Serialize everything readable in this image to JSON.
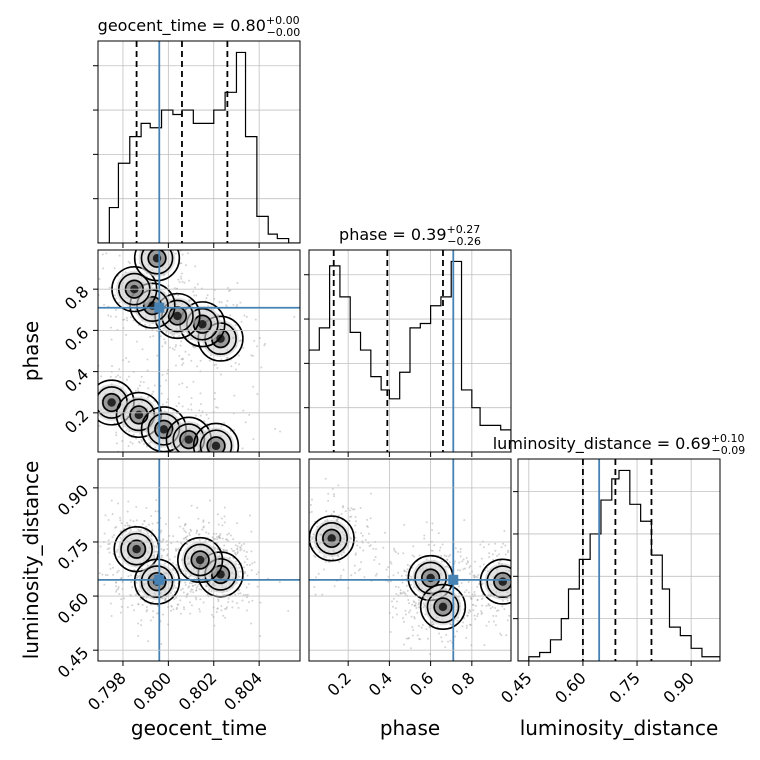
{
  "chart_data": {
    "type": "corner",
    "parameters": [
      "geocent_time",
      "phase",
      "luminosity_distance"
    ],
    "truth": {
      "geocent_time": 0.7996,
      "phase": 0.71,
      "luminosity_distance": 0.645
    },
    "colors": {
      "truth": "#4682b4",
      "hist": "#000000",
      "grid": "#c0c0c0",
      "points": "#9e9e9e",
      "contour": "#000000"
    },
    "grid": true,
    "titles": {
      "geocent_time": {
        "name": "geocent_time",
        "value": "0.80",
        "plus": "+0.00",
        "minus": "−0.00"
      },
      "phase": {
        "name": "phase",
        "value": "0.39",
        "plus": "+0.27",
        "minus": "−0.26"
      },
      "luminosity_distance": {
        "name": "luminosity_distance",
        "value": "0.69",
        "plus": "+0.10",
        "minus": "−0.09"
      }
    },
    "axes": {
      "geocent_time": {
        "range": [
          0.7969,
          0.8058
        ],
        "ticks": [
          0.798,
          0.8,
          0.802,
          0.804
        ],
        "tick_labels": [
          "0.798",
          "0.800",
          "0.802",
          "0.804"
        ]
      },
      "phase": {
        "range": [
          0.01,
          0.99
        ],
        "ticks": [
          0.2,
          0.4,
          0.6,
          0.8
        ],
        "tick_labels": [
          "0.2",
          "0.4",
          "0.6",
          "0.8"
        ]
      },
      "luminosity_distance": {
        "range": [
          0.42,
          0.98
        ],
        "ticks": [
          0.45,
          0.6,
          0.75,
          0.9
        ],
        "tick_labels": [
          "0.45",
          "0.60",
          "0.75",
          "0.90"
        ]
      }
    },
    "histograms": {
      "geocent_time": {
        "bins": [
          0.7969,
          0.7974,
          0.7978,
          0.7983,
          0.7988,
          0.7992,
          0.7997,
          0.8002,
          0.8006,
          0.8011,
          0.8016,
          0.802,
          0.8025,
          0.803,
          0.8034,
          0.8039,
          0.8044,
          0.8048,
          0.8053,
          0.8058
        ],
        "counts": [
          0,
          8,
          18,
          24,
          27,
          26,
          30,
          29,
          30,
          27,
          27,
          30,
          34,
          43,
          24,
          6,
          2,
          1,
          0
        ],
        "quantiles": [
          0.7986,
          0.8006,
          0.8026
        ]
      },
      "phase": {
        "bins": [
          0.01,
          0.06,
          0.11,
          0.16,
          0.21,
          0.26,
          0.31,
          0.36,
          0.4,
          0.45,
          0.5,
          0.55,
          0.6,
          0.65,
          0.7,
          0.75,
          0.8,
          0.84,
          0.89,
          0.94,
          0.99
        ],
        "counts": [
          23,
          28,
          42,
          35,
          27,
          23,
          17,
          14,
          12,
          18,
          28,
          29,
          33,
          35,
          43,
          14,
          10,
          6,
          6,
          5
        ],
        "quantiles": [
          0.13,
          0.39,
          0.66
        ]
      },
      "luminosity_distance": {
        "bins": [
          0.42,
          0.45,
          0.48,
          0.51,
          0.54,
          0.56,
          0.59,
          0.62,
          0.65,
          0.68,
          0.7,
          0.73,
          0.76,
          0.79,
          0.82,
          0.84,
          0.87,
          0.9,
          0.93,
          0.96,
          0.98
        ],
        "counts": [
          0,
          1,
          2,
          5,
          10,
          17,
          24,
          30,
          38,
          43,
          45,
          37,
          33,
          25,
          17,
          8,
          6,
          3,
          1,
          1
        ],
        "quantiles": [
          0.6,
          0.69,
          0.79
        ]
      }
    },
    "density_2d": {
      "phase_vs_geocent_time": {
        "centers": [
          [
            0.7975,
            0.25
          ],
          [
            0.7987,
            0.19
          ],
          [
            0.7998,
            0.12
          ],
          [
            0.8009,
            0.07
          ],
          [
            0.8021,
            0.04
          ],
          [
            0.8023,
            0.56
          ],
          [
            0.8015,
            0.63
          ],
          [
            0.8004,
            0.67
          ],
          [
            0.7993,
            0.72
          ],
          [
            0.7985,
            0.8
          ],
          [
            0.7995,
            0.95
          ]
        ],
        "contour_levels": [
          0.2,
          0.5,
          0.8
        ]
      },
      "luminosity_distance_vs_geocent_time": {
        "centers": [
          [
            0.7986,
            0.73
          ],
          [
            0.8023,
            0.66
          ],
          [
            0.7995,
            0.64
          ],
          [
            0.8014,
            0.7
          ]
        ],
        "contour_levels": [
          0.2,
          0.5,
          0.8
        ]
      },
      "luminosity_distance_vs_phase": {
        "centers": [
          [
            0.12,
            0.76
          ],
          [
            0.6,
            0.65
          ],
          [
            0.66,
            0.57
          ],
          [
            0.95,
            0.64
          ]
        ],
        "contour_levels": [
          0.2,
          0.5,
          0.8
        ]
      }
    }
  }
}
